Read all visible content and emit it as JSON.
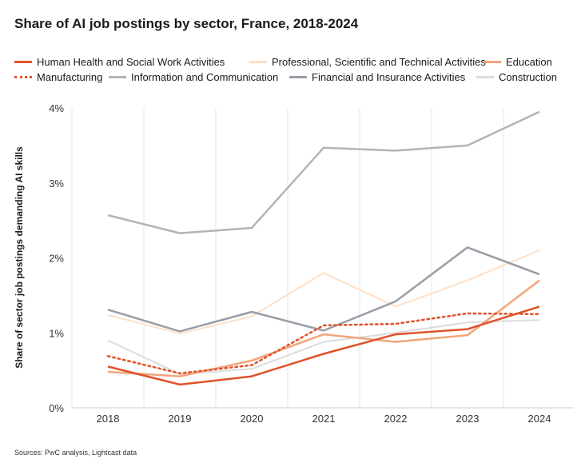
{
  "chart_data": {
    "type": "line",
    "title": "Share of AI job postings by sector, France, 2018-2024",
    "xlabel": "",
    "ylabel": "Share of sector job postings demanding AI skills",
    "x": [
      "2018",
      "2019",
      "2020",
      "2021",
      "2022",
      "2023",
      "2024"
    ],
    "ylim": [
      0,
      4
    ],
    "yticks": [
      "0%",
      "1%",
      "2%",
      "3%",
      "4%"
    ],
    "grid": "vertical",
    "legend_position": "top",
    "series": [
      {
        "name": "Human Health and Social Work Activities",
        "color": "#e0522a",
        "dash": "solid",
        "width": 2.5,
        "values": [
          0.55,
          0.31,
          0.42,
          0.72,
          0.98,
          1.05,
          1.35
        ]
      },
      {
        "name": "Professional, Scientific and Technical Activities",
        "color": "#fde0c8",
        "dash": "solid",
        "width": 2,
        "values": [
          1.24,
          0.99,
          1.22,
          1.8,
          1.35,
          1.7,
          2.1
        ]
      },
      {
        "name": "Education",
        "color": "#f2a57a",
        "dash": "solid",
        "width": 2.5,
        "values": [
          0.48,
          0.42,
          0.63,
          0.98,
          0.88,
          0.97,
          1.7
        ]
      },
      {
        "name": "Manufacturing",
        "color": "#e0522a",
        "dash": "dotted",
        "width": 2.5,
        "values": [
          0.69,
          0.46,
          0.57,
          1.1,
          1.12,
          1.26,
          1.25
        ]
      },
      {
        "name": "Information and Communication",
        "color": "#b4b4b6",
        "dash": "solid",
        "width": 2.5,
        "values": [
          2.57,
          2.33,
          2.4,
          3.47,
          3.43,
          3.5,
          3.95
        ]
      },
      {
        "name": "Financial and Insurance Activities",
        "color": "#9a9ca6",
        "dash": "solid",
        "width": 2.5,
        "values": [
          1.31,
          1.02,
          1.28,
          1.03,
          1.42,
          2.14,
          1.78
        ]
      },
      {
        "name": "Construction",
        "color": "#dcdcde",
        "dash": "solid",
        "width": 2,
        "values": [
          0.9,
          0.45,
          0.52,
          0.88,
          1.0,
          1.14,
          1.17
        ]
      }
    ]
  },
  "source": "Sources: PwC analysis, Lightcast data"
}
